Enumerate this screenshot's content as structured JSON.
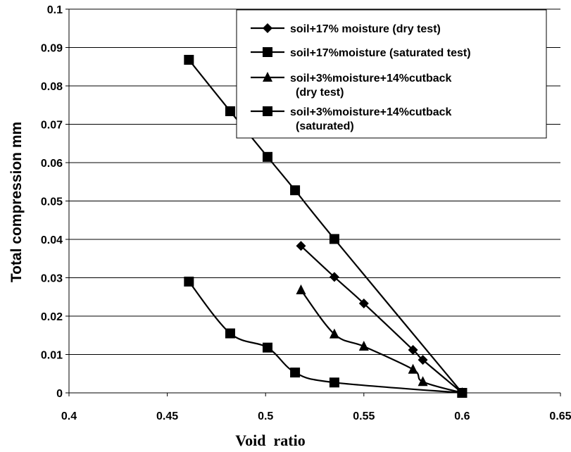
{
  "chart_data": {
    "type": "line",
    "xlabel": "Void  ratio",
    "ylabel": "Total compression mm",
    "xlim": [
      0.4,
      0.65
    ],
    "ylim": [
      0,
      0.1
    ],
    "x_ticks": [
      "0.4",
      "0.45",
      "0.5",
      "0.55",
      "0.6",
      "0.65"
    ],
    "y_ticks": [
      "0",
      "0.01",
      "0.02",
      "0.03",
      "0.04",
      "0.05",
      "0.06",
      "0.07",
      "0.08",
      "0.09",
      "0.1"
    ],
    "grid": "horizontal",
    "legend_position": "top-right",
    "series": [
      {
        "name": "soil+17% moisture (dry test)",
        "marker": "diamond",
        "points": [
          [
            0.518,
            0.0383
          ],
          [
            0.535,
            0.0302
          ],
          [
            0.55,
            0.0233
          ],
          [
            0.575,
            0.0112
          ],
          [
            0.58,
            0.0086
          ],
          [
            0.6,
            0.0
          ]
        ]
      },
      {
        "name": "soil+17%moisture (saturated test)",
        "marker": "square",
        "points": [
          [
            0.461,
            0.0868
          ],
          [
            0.482,
            0.0734
          ],
          [
            0.501,
            0.0615
          ],
          [
            0.515,
            0.0528
          ],
          [
            0.535,
            0.0401
          ],
          [
            0.6,
            0.0
          ]
        ]
      },
      {
        "name": "soil+3%moisture+14%cutback (dry test)",
        "legend_lines": [
          "soil+3%moisture+14%cutback",
          "(dry test)"
        ],
        "marker": "triangle",
        "points": [
          [
            0.518,
            0.0268
          ],
          [
            0.535,
            0.0153
          ],
          [
            0.55,
            0.0121
          ],
          [
            0.575,
            0.0061
          ],
          [
            0.58,
            0.0029
          ],
          [
            0.6,
            0.0
          ]
        ]
      },
      {
        "name": "soil+3%moisture+14%cutback (saturated)",
        "legend_lines": [
          "soil+3%moisture+14%cutback",
          "(saturated)"
        ],
        "marker": "square",
        "points": [
          [
            0.461,
            0.029
          ],
          [
            0.482,
            0.0155
          ],
          [
            0.501,
            0.0118
          ],
          [
            0.515,
            0.0053
          ],
          [
            0.535,
            0.0027
          ],
          [
            0.6,
            0.0
          ]
        ]
      }
    ]
  }
}
